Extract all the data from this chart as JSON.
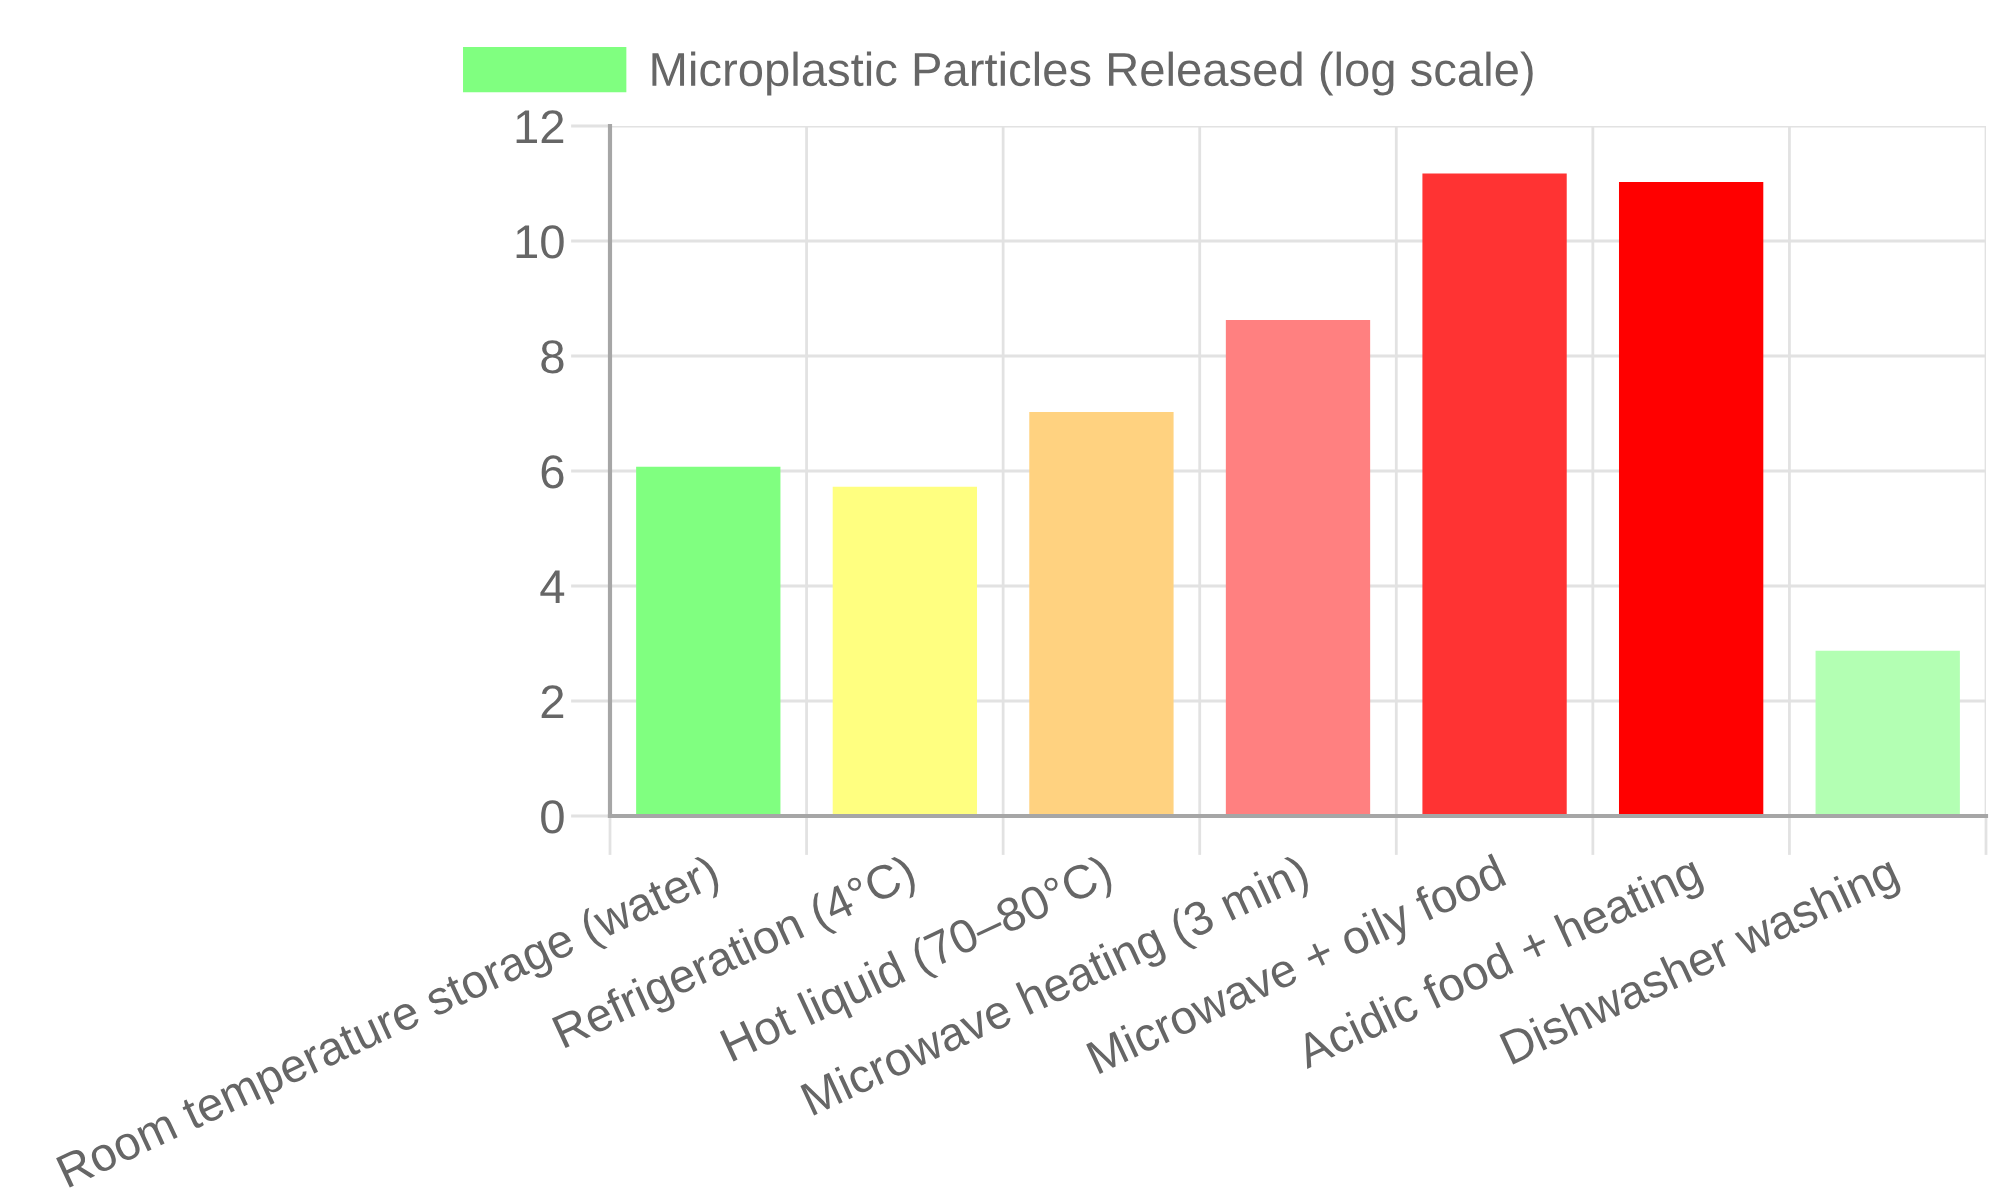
{
  "chart_data": {
    "type": "bar",
    "categories": [
      "Room temperature storage (water)",
      "Refrigeration (4°C)",
      "Hot liquid (70–80°C)",
      "Microwave heating (3 min)",
      "Microwave + oily food",
      "Acidic food + heating",
      "Dishwasher washing"
    ],
    "series": [
      {
        "name": "Microplastic Particles Released (log scale)",
        "colors": [
          "#80ff80",
          "#ffff80",
          "#ffd280",
          "#ff8080",
          "#ff3333",
          "#ff0000",
          "#b3ffb3"
        ],
        "values": [
          6.05,
          5.7,
          7.0,
          8.6,
          11.15,
          11.0,
          2.85
        ]
      }
    ],
    "ylim": [
      0,
      12
    ],
    "yticks": [
      0,
      2,
      4,
      6,
      8,
      10,
      12
    ],
    "grid": true,
    "legend": "top"
  }
}
